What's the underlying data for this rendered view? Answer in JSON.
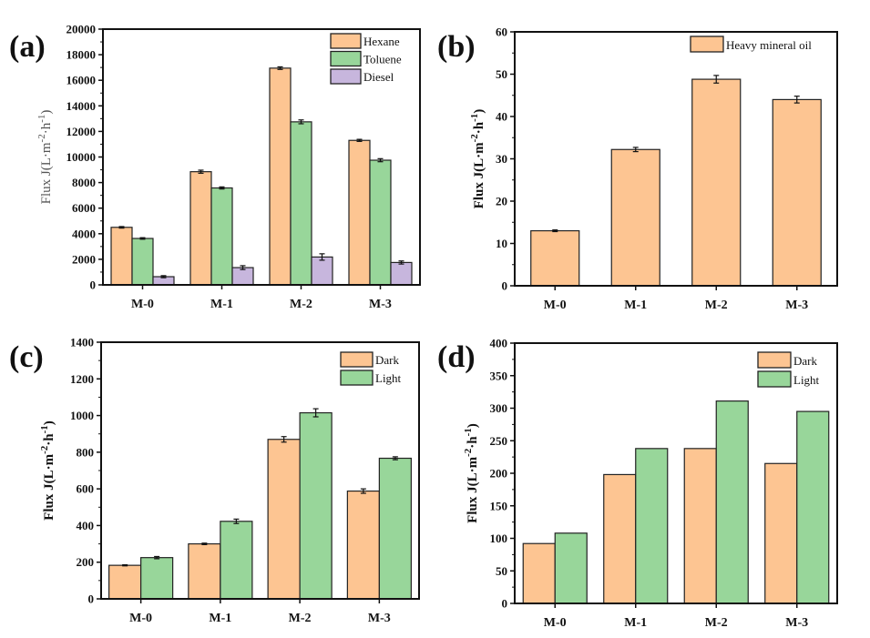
{
  "figure": {
    "colors": {
      "orange": "#FDC592",
      "green": "#98D69A",
      "purple": "#C7B6DD",
      "axis": "#111111"
    }
  },
  "chart_data": [
    {
      "panel_label": "(a)",
      "type": "bar",
      "title": "",
      "xlabel": "",
      "ylabel": "Flux J(L·m⁻²·h⁻¹)",
      "ylabel_parts": {
        "main": "Flux J(L·m",
        "exp1": "-2",
        "mid": "·h",
        "exp2": "-1",
        "end": ")"
      },
      "ylim": [
        0,
        20000
      ],
      "yticks": [
        0,
        2000,
        4000,
        6000,
        8000,
        10000,
        12000,
        14000,
        16000,
        18000,
        20000
      ],
      "categories": [
        "M-0",
        "M-1",
        "M-2",
        "M-3"
      ],
      "legend_position": "top-right",
      "series": [
        {
          "name": "Hexane",
          "color": "#FDC592",
          "values": [
            4500,
            8850,
            16950,
            11300
          ],
          "errors": [
            60,
            120,
            100,
            80
          ]
        },
        {
          "name": "Toluene",
          "color": "#98D69A",
          "values": [
            3630,
            7580,
            12750,
            9750
          ],
          "errors": [
            60,
            80,
            150,
            120
          ]
        },
        {
          "name": "Diesel",
          "color": "#C7B6DD",
          "values": [
            640,
            1350,
            2180,
            1750
          ],
          "errors": [
            80,
            150,
            250,
            120
          ]
        }
      ]
    },
    {
      "panel_label": "(b)",
      "type": "bar",
      "title": "",
      "xlabel": "",
      "ylabel": "Flux J(L·m⁻²·h⁻¹)",
      "ylabel_parts": {
        "main": "Flux J(L·m",
        "exp1": "-2",
        "mid": "·h",
        "exp2": "-1",
        "end": ")"
      },
      "ylim": [
        0,
        60
      ],
      "yticks": [
        0,
        10,
        20,
        30,
        40,
        50,
        60
      ],
      "categories": [
        "M-0",
        "M-1",
        "M-2",
        "M-3"
      ],
      "legend_position": "top-right",
      "series": [
        {
          "name": "Heavy mineral oil",
          "color": "#FDC592",
          "values": [
            13.0,
            32.2,
            48.8,
            44.0
          ],
          "errors": [
            0.2,
            0.5,
            0.9,
            0.8
          ]
        }
      ]
    },
    {
      "panel_label": "(c)",
      "type": "bar",
      "title": "",
      "xlabel": "",
      "ylabel": "Flux J(L·m⁻²·h⁻¹)",
      "ylabel_parts": {
        "main": "Flux J(L·m",
        "exp1": "-2",
        "mid": "·h",
        "exp2": "-1",
        "end": ")"
      },
      "ylim": [
        0,
        1400
      ],
      "yticks": [
        0,
        200,
        400,
        600,
        800,
        1000,
        1200,
        1400
      ],
      "categories": [
        "M-0",
        "M-1",
        "M-2",
        "M-3"
      ],
      "legend_position": "top-right",
      "series": [
        {
          "name": "Dark",
          "color": "#FDC592",
          "values": [
            183,
            300,
            870,
            588
          ],
          "errors": [
            3,
            4,
            15,
            12
          ]
        },
        {
          "name": "Light",
          "color": "#98D69A",
          "values": [
            225,
            423,
            1015,
            767
          ],
          "errors": [
            6,
            12,
            22,
            8
          ]
        }
      ]
    },
    {
      "panel_label": "(d)",
      "type": "bar",
      "title": "",
      "xlabel": "",
      "ylabel": "Flux J(L·m⁻²·h⁻¹)",
      "ylabel_parts": {
        "main": "Flux J(L·m",
        "exp1": "-2",
        "mid": "·h",
        "exp2": "-1",
        "end": ")"
      },
      "ylim": [
        0,
        400
      ],
      "yticks": [
        0,
        50,
        100,
        150,
        200,
        250,
        300,
        350,
        400
      ],
      "categories": [
        "M-0",
        "M-1",
        "M-2",
        "M-3"
      ],
      "legend_position": "top-right",
      "series": [
        {
          "name": "Dark",
          "color": "#FDC592",
          "values": [
            92,
            198,
            238,
            215
          ],
          "errors": []
        },
        {
          "name": "Light",
          "color": "#98D69A",
          "values": [
            108,
            238,
            311,
            295
          ],
          "errors": []
        }
      ]
    }
  ]
}
